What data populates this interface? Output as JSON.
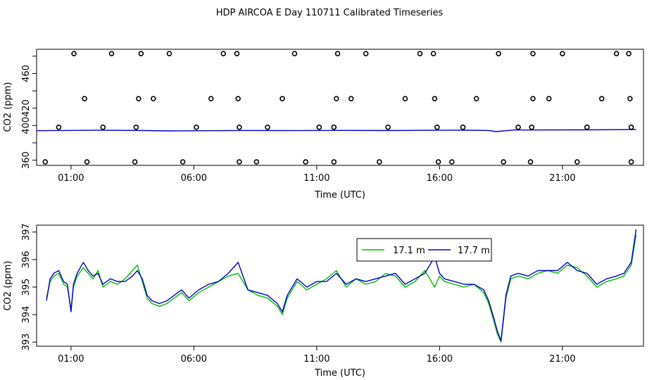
{
  "title": "HDP AIRCOA E  Day 110711  Calibrated Timeseries",
  "chart_data": [
    {
      "type": "scatter+line",
      "xlabel": "Time (UTC)",
      "ylabel": "CO2 (ppm)",
      "xlim": [
        -0.4,
        24.3
      ],
      "ylim": [
        354,
        488
      ],
      "xticks": [
        1,
        6,
        11,
        16,
        21
      ],
      "xtick_labels": [
        "01:00",
        "06:00",
        "11:00",
        "16:00",
        "21:00"
      ],
      "yticks": [
        360,
        380,
        400,
        420,
        440,
        460,
        480
      ],
      "ytick_labels": [
        "360",
        "",
        "400",
        "420",
        "",
        "460",
        ""
      ],
      "points": [
        {
          "x": 1.12,
          "y": 483
        },
        {
          "x": 2.65,
          "y": 483
        },
        {
          "x": 3.85,
          "y": 483
        },
        {
          "x": 5.0,
          "y": 483
        },
        {
          "x": 7.2,
          "y": 483
        },
        {
          "x": 7.75,
          "y": 483
        },
        {
          "x": 10.1,
          "y": 483
        },
        {
          "x": 11.85,
          "y": 483
        },
        {
          "x": 13.0,
          "y": 483
        },
        {
          "x": 15.2,
          "y": 483
        },
        {
          "x": 15.75,
          "y": 483
        },
        {
          "x": 18.4,
          "y": 483
        },
        {
          "x": 19.8,
          "y": 483
        },
        {
          "x": 21.0,
          "y": 483
        },
        {
          "x": 23.2,
          "y": 483
        },
        {
          "x": 23.7,
          "y": 483
        },
        {
          "x": 1.55,
          "y": 431
        },
        {
          "x": 3.75,
          "y": 431
        },
        {
          "x": 4.35,
          "y": 431
        },
        {
          "x": 6.7,
          "y": 431
        },
        {
          "x": 7.8,
          "y": 431
        },
        {
          "x": 9.6,
          "y": 431
        },
        {
          "x": 11.8,
          "y": 431
        },
        {
          "x": 12.4,
          "y": 431
        },
        {
          "x": 14.6,
          "y": 431
        },
        {
          "x": 15.8,
          "y": 431
        },
        {
          "x": 17.5,
          "y": 431
        },
        {
          "x": 19.8,
          "y": 431
        },
        {
          "x": 20.45,
          "y": 431
        },
        {
          "x": 22.6,
          "y": 431
        },
        {
          "x": 23.75,
          "y": 431
        },
        {
          "x": 0.5,
          "y": 398
        },
        {
          "x": 2.3,
          "y": 398
        },
        {
          "x": 3.65,
          "y": 398
        },
        {
          "x": 6.1,
          "y": 398
        },
        {
          "x": 7.85,
          "y": 398
        },
        {
          "x": 9.0,
          "y": 398
        },
        {
          "x": 11.1,
          "y": 398
        },
        {
          "x": 11.7,
          "y": 398
        },
        {
          "x": 13.9,
          "y": 398
        },
        {
          "x": 15.9,
          "y": 398
        },
        {
          "x": 16.95,
          "y": 398
        },
        {
          "x": 19.2,
          "y": 398
        },
        {
          "x": 19.75,
          "y": 398
        },
        {
          "x": 22.0,
          "y": 398
        },
        {
          "x": 23.8,
          "y": 398
        },
        {
          "x": -0.05,
          "y": 358
        },
        {
          "x": 1.65,
          "y": 358
        },
        {
          "x": 3.6,
          "y": 358
        },
        {
          "x": 5.55,
          "y": 358
        },
        {
          "x": 7.85,
          "y": 358
        },
        {
          "x": 8.55,
          "y": 358
        },
        {
          "x": 10.55,
          "y": 358
        },
        {
          "x": 11.7,
          "y": 358
        },
        {
          "x": 13.55,
          "y": 358
        },
        {
          "x": 15.95,
          "y": 358
        },
        {
          "x": 16.5,
          "y": 358
        },
        {
          "x": 18.6,
          "y": 358
        },
        {
          "x": 19.7,
          "y": 358
        },
        {
          "x": 21.6,
          "y": 358
        },
        {
          "x": 23.8,
          "y": 358
        }
      ],
      "series": [
        {
          "color": "#0000cc",
          "x": [
            -0.4,
            2,
            4,
            5,
            8,
            10,
            12,
            14,
            16,
            17,
            18,
            18.3,
            19,
            22,
            24
          ],
          "y": [
            394,
            394.5,
            394.2,
            393.8,
            394.3,
            394.1,
            394.4,
            394.2,
            394.5,
            394.6,
            394.3,
            393,
            394.8,
            395,
            395.3
          ]
        }
      ]
    },
    {
      "type": "line",
      "xlabel": "Time (UTC)",
      "ylabel": "CO2 (ppm)",
      "xlim": [
        -0.4,
        24.3
      ],
      "ylim": [
        392.85,
        397.25
      ],
      "xticks": [
        1,
        6,
        11,
        16,
        21
      ],
      "xtick_labels": [
        "01:00",
        "06:00",
        "11:00",
        "16:00",
        "21:00"
      ],
      "yticks": [
        393,
        394,
        395,
        396,
        397
      ],
      "ytick_labels": [
        "393",
        "394",
        "395",
        "396",
        "397"
      ],
      "legend": {
        "position": "top-center",
        "entries": [
          {
            "label": "17.1 m",
            "color": "#00bb00"
          },
          {
            "label": "17.7 m",
            "color": "#0000cc"
          }
        ]
      },
      "series": [
        {
          "name": "17.1 m",
          "color": "#00bb00",
          "x": [
            0,
            0.15,
            0.3,
            0.5,
            0.7,
            0.85,
            1.0,
            1.1,
            1.25,
            1.5,
            1.7,
            1.9,
            2.1,
            2.3,
            2.6,
            2.9,
            3.2,
            3.5,
            3.7,
            3.9,
            4.1,
            4.3,
            4.6,
            4.9,
            5.2,
            5.5,
            5.8,
            6.2,
            6.6,
            7.0,
            7.4,
            7.8,
            8.2,
            8.6,
            9.0,
            9.4,
            9.6,
            9.8,
            10.2,
            10.6,
            11.0,
            11.4,
            11.8,
            12.2,
            12.6,
            13.0,
            13.4,
            13.8,
            14.2,
            14.6,
            15.0,
            15.4,
            15.8,
            16.0,
            16.2,
            16.6,
            17.0,
            17.4,
            17.8,
            18.0,
            18.2,
            18.35,
            18.5,
            18.7,
            18.9,
            19.2,
            19.6,
            20.0,
            20.4,
            20.8,
            21.2,
            21.6,
            22.0,
            22.4,
            22.8,
            23.2,
            23.5,
            23.8,
            24.0
          ],
          "y": [
            394.6,
            395.2,
            395.4,
            395.5,
            395.1,
            395.0,
            394.2,
            395.0,
            395.4,
            395.7,
            395.5,
            395.3,
            395.6,
            395.0,
            395.2,
            395.1,
            395.3,
            395.6,
            395.8,
            395.2,
            394.6,
            394.4,
            394.3,
            394.4,
            394.6,
            394.8,
            394.5,
            394.8,
            395.0,
            395.2,
            395.4,
            395.5,
            394.9,
            394.7,
            394.6,
            394.3,
            394.0,
            394.6,
            395.2,
            394.9,
            395.1,
            395.3,
            395.6,
            395.0,
            395.3,
            395.1,
            395.2,
            395.5,
            395.4,
            395.0,
            395.2,
            395.6,
            395.0,
            395.4,
            395.2,
            395.1,
            395.0,
            395.1,
            394.8,
            394.4,
            393.8,
            393.3,
            393.0,
            394.6,
            395.3,
            395.4,
            395.3,
            395.5,
            395.6,
            395.5,
            395.8,
            395.7,
            395.4,
            395.0,
            395.2,
            395.3,
            395.4,
            395.8,
            396.9
          ]
        },
        {
          "name": "17.7 m",
          "color": "#0000cc",
          "x": [
            0,
            0.15,
            0.3,
            0.5,
            0.7,
            0.85,
            1.0,
            1.1,
            1.25,
            1.5,
            1.7,
            1.9,
            2.1,
            2.3,
            2.6,
            2.9,
            3.2,
            3.5,
            3.7,
            3.9,
            4.1,
            4.3,
            4.6,
            4.9,
            5.2,
            5.5,
            5.8,
            6.2,
            6.6,
            7.0,
            7.4,
            7.8,
            8.2,
            8.6,
            9.0,
            9.4,
            9.6,
            9.8,
            10.2,
            10.6,
            11.0,
            11.4,
            11.8,
            12.2,
            12.6,
            13.0,
            13.4,
            13.8,
            14.2,
            14.6,
            15.0,
            15.4,
            15.8,
            16.0,
            16.2,
            16.6,
            17.0,
            17.4,
            17.8,
            18.0,
            18.2,
            18.35,
            18.5,
            18.7,
            18.9,
            19.2,
            19.6,
            20.0,
            20.4,
            20.8,
            21.2,
            21.6,
            22.0,
            22.4,
            22.8,
            23.2,
            23.5,
            23.8,
            24.0
          ],
          "y": [
            394.5,
            395.3,
            395.5,
            395.6,
            395.2,
            395.1,
            394.1,
            395.1,
            395.5,
            395.9,
            395.6,
            395.4,
            395.5,
            395.1,
            395.3,
            395.2,
            395.2,
            395.4,
            395.6,
            395.3,
            394.7,
            394.5,
            394.4,
            394.5,
            394.7,
            394.9,
            394.6,
            394.9,
            395.1,
            395.2,
            395.5,
            395.9,
            394.9,
            394.8,
            394.7,
            394.4,
            394.1,
            394.7,
            395.3,
            395.0,
            395.2,
            395.2,
            395.5,
            395.1,
            395.3,
            395.2,
            395.3,
            395.4,
            395.5,
            395.1,
            395.3,
            395.5,
            396.1,
            395.5,
            395.3,
            395.2,
            395.1,
            395.1,
            394.9,
            394.5,
            393.9,
            393.4,
            393.05,
            394.7,
            395.4,
            395.5,
            395.4,
            395.6,
            395.6,
            395.6,
            395.9,
            395.6,
            395.5,
            395.1,
            395.3,
            395.4,
            395.5,
            395.9,
            397.1
          ]
        }
      ]
    }
  ]
}
